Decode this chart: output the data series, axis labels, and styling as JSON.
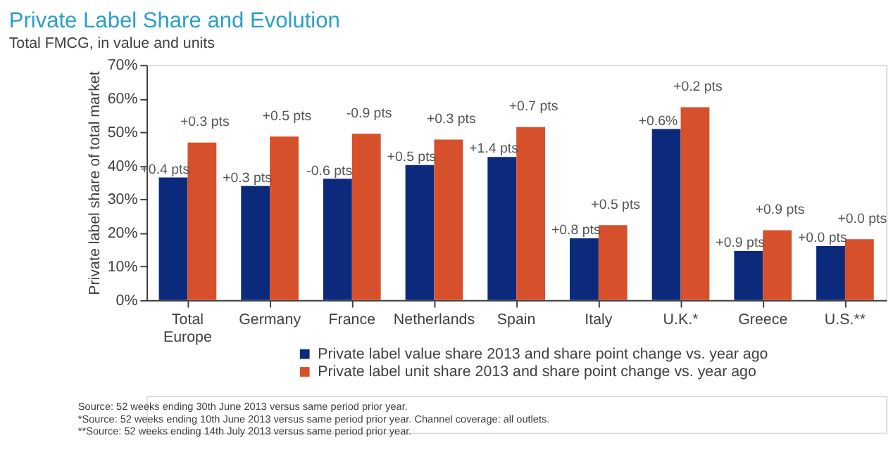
{
  "chart_data": {
    "type": "bar",
    "title": "Private Label Share and Evolution",
    "subtitle": "Total FMCG, in value and units",
    "ylabel": "Private label share of total market",
    "categories": [
      "Total Europe",
      "Germany",
      "France",
      "Netherlands",
      "Spain",
      "Italy",
      "U.K.*",
      "Greece",
      "U.S.**"
    ],
    "series": [
      {
        "name": "Private label value share 2013 and share point change vs. year ago",
        "color": "#0b2a7c",
        "values": [
          36.5,
          34.0,
          36.1,
          40.2,
          42.6,
          18.4,
          50.9,
          14.6,
          16.1
        ]
      },
      {
        "name": "Private label unit share 2013 and share point change vs. year ago",
        "color": "#d6502b",
        "values": [
          46.9,
          48.7,
          49.5,
          47.8,
          51.5,
          22.3,
          57.4,
          20.8,
          18.1
        ]
      }
    ],
    "ylim": [
      0,
      70
    ],
    "yticks": [
      {
        "value": 0,
        "label": "0%"
      },
      {
        "value": 10,
        "label": "10%"
      },
      {
        "value": 20,
        "label": "20%"
      },
      {
        "value": 30,
        "label": "30%"
      },
      {
        "value": 40,
        "label": "40%"
      },
      {
        "value": 50,
        "label": "50%"
      },
      {
        "value": 60,
        "label": "60%"
      },
      {
        "value": 70,
        "label": "70%"
      }
    ],
    "grid": false,
    "legend": "bottom",
    "annotations": [
      {
        "text": "+0.4 pts",
        "x": "Total Europe",
        "y": 36.5
      },
      {
        "text": "+0.3 pts",
        "x": "Germany",
        "y": 34.0
      },
      {
        "text": "-0.6 pts",
        "x": "France",
        "y": 36.1
      },
      {
        "text": "+0.5 pts",
        "x": "Netherlands",
        "y": 40.2
      },
      {
        "text": "+1.4 pts",
        "x": "Spain",
        "y": 42.6
      },
      {
        "text": "+0.8 pts",
        "x": "Italy",
        "y": 18.4
      },
      {
        "text": "+0.6%",
        "x": "U.K.*",
        "y": 50.9
      },
      {
        "text": "+0.9 pts",
        "x": "Greece",
        "y": 14.6
      },
      {
        "text": "+0.0 pts",
        "x": "U.S.**",
        "y": 16.1
      },
      {
        "text": "+0.3 pts",
        "x": "Total Europe",
        "y": 46.9
      },
      {
        "text": "+0.5 pts",
        "x": "Germany",
        "y": 48.7
      },
      {
        "text": "-0.9 pts",
        "x": "France",
        "y": 49.5
      },
      {
        "text": "+0.3 pts",
        "x": "Netherlands",
        "y": 47.8
      },
      {
        "text": "+0.7 pts",
        "x": "Spain",
        "y": 51.5
      },
      {
        "text": "+0.5 pts",
        "x": "Italy",
        "y": 22.3
      },
      {
        "text": "+0.2 pts",
        "x": "U.K.*",
        "y": 57.4
      },
      {
        "text": "+0.9 pts",
        "x": "Greece",
        "y": 20.8
      },
      {
        "text": "+0.0 pts",
        "x": "U.S.**",
        "y": 18.1
      },
      "Source: 52 weeks ending 30th June 2013 versus same period prior year.",
      "*Source: 52 weeks ending 10th June 2013 versus same period prior year. Channel coverage: all outlets.",
      "**Source: 52 weeks ending 14th July 2013 versus same period prior year."
    ]
  }
}
